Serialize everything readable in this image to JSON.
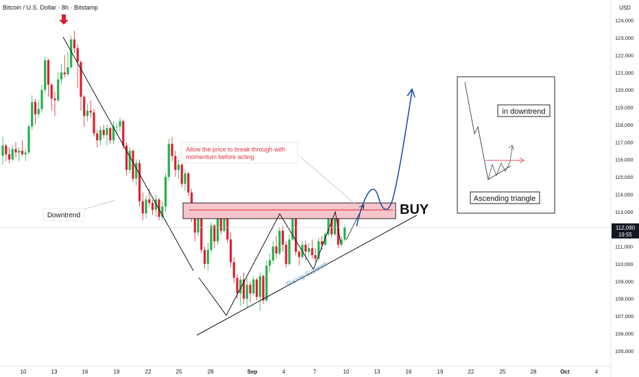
{
  "header": {
    "symbol_title": "Bitcoin / U.S. Dollar · 8h · Bitstamp",
    "currency": "USD"
  },
  "colors": {
    "up": "#26a69a",
    "up_bright": "#22b14c",
    "down": "#d9202f",
    "resistance_fill": "#f6c5cc",
    "projection": "#1f4db3",
    "support_label": "#6aa7df",
    "note_text": "#e03040",
    "price_line": "#c8c8c8"
  },
  "chart_data": {
    "type": "candlestick",
    "instrument": "Bitcoin / U.S. Dollar",
    "interval": "8h",
    "exchange": "Bitstamp",
    "y_axis": {
      "ticks": [
        105000,
        106000,
        107000,
        108000,
        109000,
        110000,
        111000,
        112000,
        113000,
        114000,
        115000,
        116000,
        117000,
        118000,
        119000,
        120000,
        121000,
        122000,
        123000,
        124000
      ],
      "tick_labels": [
        "105,000",
        "106,000",
        "107,000",
        "108,000",
        "109,000",
        "110,000",
        "111,000",
        "112,000",
        "113,000",
        "114,000",
        "115,000",
        "116,000",
        "117,000",
        "118,000",
        "119,000",
        "120,000",
        "121,000",
        "122,000",
        "123,000",
        "124,000"
      ],
      "ylim": [
        104600,
        124300
      ]
    },
    "x_axis": {
      "labels": [
        "10",
        "13",
        "16",
        "19",
        "22",
        "25",
        "28",
        "Sep",
        "4",
        "7",
        "10",
        "13",
        "16",
        "19",
        "22",
        "25",
        "28",
        "Oct",
        "4"
      ],
      "bold_labels": [
        "Sep",
        "Oct"
      ]
    },
    "current_price": {
      "value": 112090,
      "label": "112,090",
      "countdown": "19:55"
    },
    "candles": [
      [
        116200,
        117300,
        115700,
        116800
      ],
      [
        116800,
        116900,
        115900,
        116300
      ],
      [
        116300,
        116700,
        115800,
        116000
      ],
      [
        116000,
        116800,
        115900,
        116600
      ],
      [
        116600,
        117000,
        116100,
        116400
      ],
      [
        116400,
        116700,
        115900,
        116500
      ],
      [
        116500,
        117100,
        116200,
        116300
      ],
      [
        116300,
        116600,
        115900,
        116400
      ],
      [
        116400,
        118000,
        116300,
        117900
      ],
      [
        117900,
        119700,
        117700,
        119300
      ],
      [
        119300,
        119500,
        118000,
        118600
      ],
      [
        118600,
        119400,
        118400,
        118900
      ],
      [
        118900,
        120300,
        118700,
        120000
      ],
      [
        120000,
        121900,
        119800,
        121700
      ],
      [
        121700,
        121800,
        119600,
        120300
      ],
      [
        120300,
        120400,
        118800,
        119500
      ],
      [
        119500,
        119900,
        118500,
        119400
      ],
      [
        119400,
        121000,
        119300,
        120600
      ],
      [
        120600,
        121500,
        120300,
        121000
      ],
      [
        121000,
        122000,
        120700,
        120900
      ],
      [
        120900,
        122200,
        120800,
        121300
      ],
      [
        121300,
        123100,
        121200,
        122900
      ],
      [
        122900,
        123400,
        122100,
        122400
      ],
      [
        122400,
        122600,
        120100,
        121600
      ],
      [
        121600,
        121700,
        118800,
        119600
      ],
      [
        119600,
        119700,
        117900,
        118500
      ],
      [
        118500,
        119200,
        118200,
        118800
      ],
      [
        118800,
        119400,
        118400,
        118700
      ],
      [
        118700,
        118900,
        117300,
        117500
      ],
      [
        117500,
        117700,
        116700,
        117100
      ],
      [
        117100,
        117900,
        116800,
        117700
      ],
      [
        117700,
        118000,
        117200,
        117400
      ],
      [
        117400,
        118000,
        116800,
        117800
      ],
      [
        117800,
        117900,
        116900,
        117100
      ],
      [
        117100,
        118200,
        116900,
        117900
      ],
      [
        117900,
        118100,
        117400,
        117900
      ],
      [
        117900,
        118400,
        117600,
        118200
      ],
      [
        118200,
        118300,
        116600,
        116800
      ],
      [
        116800,
        117000,
        115100,
        115400
      ],
      [
        115400,
        116700,
        115200,
        116500
      ],
      [
        116500,
        116600,
        114700,
        114900
      ],
      [
        114900,
        116000,
        114500,
        115800
      ],
      [
        115800,
        116000,
        113300,
        113600
      ],
      [
        113600,
        114100,
        112500,
        112900
      ],
      [
        112900,
        113900,
        112600,
        113700
      ],
      [
        113700,
        114300,
        113300,
        113500
      ],
      [
        113500,
        113700,
        112800,
        113100
      ],
      [
        113100,
        114000,
        112700,
        113700
      ],
      [
        113700,
        113800,
        112500,
        112700
      ],
      [
        112700,
        113600,
        112500,
        113300
      ],
      [
        113300,
        115200,
        113000,
        115000
      ],
      [
        115000,
        117200,
        114800,
        116900
      ],
      [
        116900,
        117300,
        115900,
        116200
      ],
      [
        116200,
        116500,
        115000,
        115400
      ],
      [
        115400,
        116000,
        114900,
        115700
      ],
      [
        115700,
        115800,
        114400,
        114600
      ],
      [
        114600,
        115400,
        114200,
        115200
      ],
      [
        115200,
        115300,
        113900,
        114100
      ],
      [
        114100,
        114300,
        112400,
        112600
      ],
      [
        112600,
        112700,
        111300,
        111800
      ],
      [
        111800,
        113100,
        111600,
        112600
      ],
      [
        112600,
        112700,
        110600,
        110800
      ],
      [
        110800,
        111000,
        109700,
        110000
      ],
      [
        110000,
        111200,
        109600,
        110800
      ],
      [
        110800,
        112400,
        110600,
        112200
      ],
      [
        112200,
        112300,
        110900,
        111300
      ],
      [
        111300,
        112800,
        111100,
        112600
      ],
      [
        112600,
        113200,
        111700,
        111900
      ],
      [
        111900,
        113500,
        111800,
        113100
      ],
      [
        113100,
        113300,
        111200,
        111400
      ],
      [
        111400,
        111800,
        109800,
        110100
      ],
      [
        110100,
        110400,
        108900,
        109200
      ],
      [
        109200,
        109400,
        108000,
        108300
      ],
      [
        108300,
        109300,
        107600,
        109100
      ],
      [
        109100,
        109500,
        107700,
        108000
      ],
      [
        108000,
        109200,
        107500,
        108800
      ],
      [
        108800,
        109000,
        107800,
        108300
      ],
      [
        108300,
        109300,
        108200,
        109100
      ],
      [
        109100,
        109200,
        107900,
        108100
      ],
      [
        108100,
        109500,
        107300,
        109300
      ],
      [
        109300,
        109400,
        107700,
        107900
      ],
      [
        107900,
        110200,
        107800,
        109900
      ],
      [
        109900,
        110600,
        109500,
        110200
      ],
      [
        110200,
        111300,
        110000,
        111000
      ],
      [
        111000,
        111600,
        110300,
        110600
      ],
      [
        110600,
        112100,
        110500,
        111900
      ],
      [
        111900,
        112200,
        110700,
        111100
      ],
      [
        111100,
        111300,
        109800,
        110000
      ],
      [
        110000,
        111700,
        109900,
        111400
      ],
      [
        111400,
        113000,
        111300,
        112800
      ],
      [
        112800,
        112900,
        110500,
        110700
      ],
      [
        110700,
        110800,
        109900,
        110400
      ],
      [
        110400,
        111300,
        110300,
        111100
      ],
      [
        111100,
        111300,
        110200,
        110700
      ],
      [
        110700,
        111200,
        110400,
        110900
      ],
      [
        110900,
        111400,
        110300,
        110500
      ],
      [
        110500,
        110900,
        110100,
        110300
      ],
      [
        110300,
        111500,
        110200,
        111300
      ],
      [
        111300,
        111600,
        110800,
        111100
      ],
      [
        111100,
        111800,
        111000,
        111700
      ],
      [
        111700,
        113000,
        111600,
        112800
      ],
      [
        112800,
        112900,
        111500,
        111700
      ],
      [
        111700,
        113200,
        111600,
        113000
      ],
      [
        113000,
        113100,
        110900,
        111100
      ],
      [
        111100,
        111600,
        111000,
        111400
      ],
      [
        111400,
        112200,
        111300,
        112100
      ]
    ],
    "annotations": {
      "resistance_zone": [
        112600,
        113500
      ],
      "resistance_mid": 113100,
      "downtrend_label": "Downtrend",
      "rising_support_label": "Rising Support",
      "buy_label": "BUY",
      "note": [
        "Allow the price to break through with",
        "momentum before acting"
      ],
      "inset": {
        "title_top": "in downtrend",
        "title_bottom": "Ascending triangle"
      }
    }
  }
}
